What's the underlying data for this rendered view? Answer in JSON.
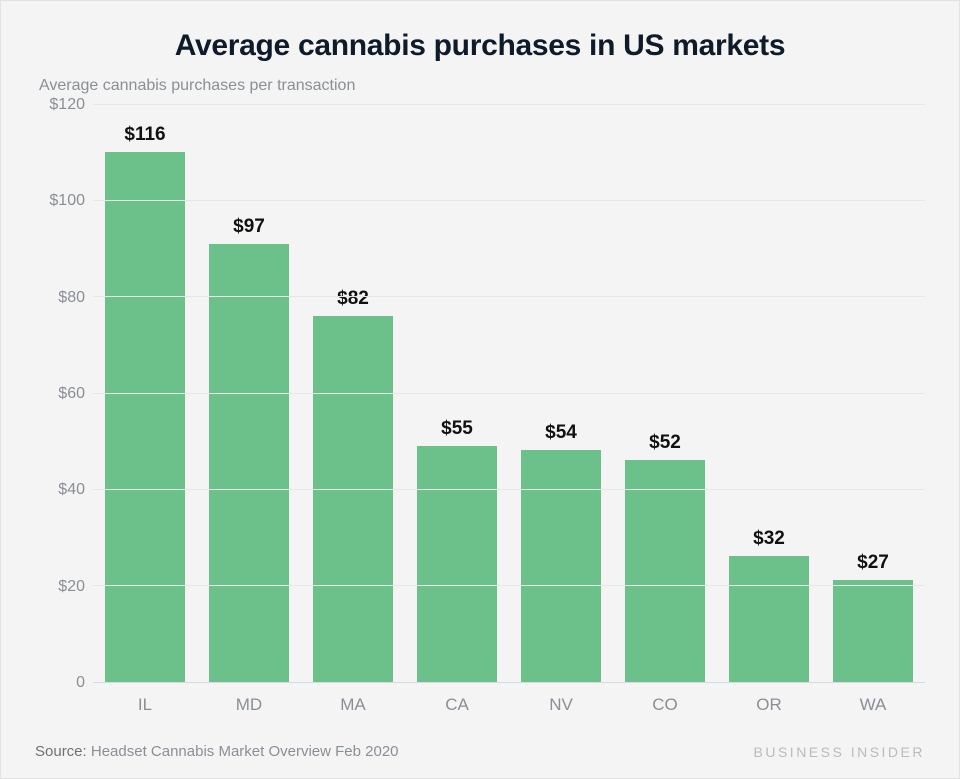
{
  "chart": {
    "type": "bar",
    "title": "Average cannabis purchases in US markets",
    "subtitle": "Average cannabis purchases per transaction",
    "categories": [
      "IL",
      "MD",
      "MA",
      "CA",
      "NV",
      "CO",
      "OR",
      "WA"
    ],
    "values": [
      116,
      97,
      82,
      55,
      54,
      52,
      32,
      27
    ],
    "value_labels": [
      "$116",
      "$97",
      "$82",
      "$55",
      "$54",
      "$52",
      "$32",
      "$27"
    ],
    "bar_color": "#6cc18a",
    "bar_width": 0.76,
    "ylim": [
      0,
      120
    ],
    "ytick_step": 20,
    "yticks": [
      0,
      20,
      40,
      60,
      80,
      100,
      120
    ],
    "ytick_labels": [
      "0",
      "$20",
      "$40",
      "$60",
      "$80",
      "$100",
      "$120"
    ],
    "background_color": "#f4f4f4",
    "grid_color": "#e4e6e9",
    "axis_color": "#d6d9dd",
    "tick_label_color": "#8a8f97",
    "title_fontsize": 30,
    "title_color": "#0f1a2b",
    "subtitle_fontsize": 16,
    "value_label_fontsize": 19,
    "value_label_weight": 800,
    "tick_fontsize": 16
  },
  "footer": {
    "source_label": "Source:",
    "source_text": "Headset Cannabis Market Overview Feb 2020",
    "brand": "BUSINESS INSIDER",
    "brand_color": "#b7bcc2",
    "brand_letter_spacing": 2.5
  }
}
